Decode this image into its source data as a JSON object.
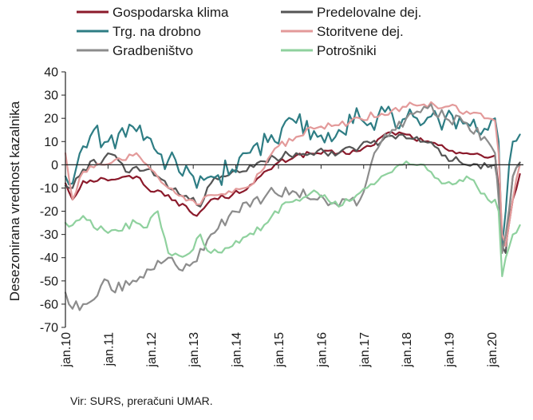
{
  "chart_data": {
    "type": "line",
    "xlabel": "",
    "ylabel": "Desezonirana vrednost kazalnika",
    "ylim": [
      -70,
      40
    ],
    "yticks": [
      "40",
      "30",
      "20",
      "10",
      "0",
      "-10",
      "-20",
      "-30",
      "-40",
      "-50",
      "-60",
      "-70"
    ],
    "x_start": "2010-01",
    "x_end": "2020-09",
    "x_ticks": [
      "jan.10",
      "jan.11",
      "jan.12",
      "jan.13",
      "jan.14",
      "jan.15",
      "jan.16",
      "jan.17",
      "jan.18",
      "jan.19",
      "jan.20"
    ],
    "legend_position": "top",
    "grid": false,
    "source": "Vir: SURS, preračuni UMAR.",
    "series": [
      {
        "name": "Gospodarska klima",
        "color": "#8b1a2b",
        "anchors": [
          [
            "2010-01",
            -8
          ],
          [
            "2010-03",
            -15
          ],
          [
            "2010-06",
            -7
          ],
          [
            "2010-12",
            -6
          ],
          [
            "2011-04",
            -6
          ],
          [
            "2011-09",
            -5
          ],
          [
            "2011-12",
            -10
          ],
          [
            "2012-06",
            -13
          ],
          [
            "2012-12",
            -20
          ],
          [
            "2013-02",
            -22
          ],
          [
            "2013-06",
            -15
          ],
          [
            "2013-12",
            -13
          ],
          [
            "2014-06",
            -8
          ],
          [
            "2014-12",
            0
          ],
          [
            "2015-06",
            4
          ],
          [
            "2015-12",
            5
          ],
          [
            "2016-06",
            5
          ],
          [
            "2016-12",
            6
          ],
          [
            "2017-03",
            8
          ],
          [
            "2017-06",
            12
          ],
          [
            "2017-09",
            14
          ],
          [
            "2018-01",
            13
          ],
          [
            "2018-06",
            10
          ],
          [
            "2018-12",
            7
          ],
          [
            "2019-06",
            5
          ],
          [
            "2019-12",
            3
          ],
          [
            "2020-02",
            4
          ],
          [
            "2020-03",
            -10
          ],
          [
            "2020-04",
            -32
          ],
          [
            "2020-05",
            -35
          ],
          [
            "2020-06",
            -25
          ],
          [
            "2020-07",
            -15
          ],
          [
            "2020-09",
            -4
          ]
        ],
        "noise": 1.2
      },
      {
        "name": "Predelovalne dej.",
        "color": "#555555",
        "anchors": [
          [
            "2010-01",
            -9
          ],
          [
            "2010-03",
            -10
          ],
          [
            "2010-06",
            -2
          ],
          [
            "2010-12",
            3
          ],
          [
            "2011-03",
            4
          ],
          [
            "2011-06",
            -3
          ],
          [
            "2011-12",
            -2
          ],
          [
            "2012-03",
            -5
          ],
          [
            "2012-06",
            -10
          ],
          [
            "2012-12",
            -15
          ],
          [
            "2013-03",
            -18
          ],
          [
            "2013-06",
            -8
          ],
          [
            "2013-12",
            -3
          ],
          [
            "2014-06",
            -1
          ],
          [
            "2014-12",
            3
          ],
          [
            "2015-06",
            5
          ],
          [
            "2015-12",
            6
          ],
          [
            "2016-06",
            5
          ],
          [
            "2016-12",
            8
          ],
          [
            "2017-06",
            10
          ],
          [
            "2017-12",
            13
          ],
          [
            "2018-06",
            10
          ],
          [
            "2018-12",
            4
          ],
          [
            "2019-06",
            0
          ],
          [
            "2019-12",
            -1
          ],
          [
            "2020-02",
            0
          ],
          [
            "2020-03",
            -10
          ],
          [
            "2020-04",
            -35
          ],
          [
            "2020-05",
            -38
          ],
          [
            "2020-06",
            -20
          ],
          [
            "2020-07",
            -5
          ],
          [
            "2020-09",
            1
          ]
        ],
        "noise": 1.8
      },
      {
        "name": "Trg. na drobno",
        "color": "#2e7d84",
        "anchors": [
          [
            "2010-01",
            -5
          ],
          [
            "2010-03",
            -8
          ],
          [
            "2010-06",
            8
          ],
          [
            "2010-09",
            15
          ],
          [
            "2011-01",
            10
          ],
          [
            "2011-06",
            12
          ],
          [
            "2011-12",
            12
          ],
          [
            "2012-03",
            5
          ],
          [
            "2012-06",
            2
          ],
          [
            "2012-09",
            -3
          ],
          [
            "2013-01",
            -5
          ],
          [
            "2013-06",
            -5
          ],
          [
            "2013-12",
            -2
          ],
          [
            "2014-03",
            5
          ],
          [
            "2014-06",
            8
          ],
          [
            "2014-12",
            10
          ],
          [
            "2015-06",
            18
          ],
          [
            "2015-12",
            12
          ],
          [
            "2016-06",
            15
          ],
          [
            "2016-12",
            20
          ],
          [
            "2017-03",
            18
          ],
          [
            "2017-06",
            25
          ],
          [
            "2017-09",
            22
          ],
          [
            "2018-01",
            20
          ],
          [
            "2018-06",
            18
          ],
          [
            "2018-12",
            20
          ],
          [
            "2019-06",
            18
          ],
          [
            "2019-12",
            15
          ],
          [
            "2020-02",
            20
          ],
          [
            "2020-03",
            10
          ],
          [
            "2020-04",
            -35
          ],
          [
            "2020-05",
            -20
          ],
          [
            "2020-07",
            10
          ],
          [
            "2020-09",
            13
          ]
        ],
        "noise": 5.5
      },
      {
        "name": "Storitvene dej.",
        "color": "#e39a9a",
        "anchors": [
          [
            "2010-01",
            5
          ],
          [
            "2010-03",
            -15
          ],
          [
            "2010-06",
            -3
          ],
          [
            "2010-12",
            0
          ],
          [
            "2011-06",
            2
          ],
          [
            "2011-09",
            5
          ],
          [
            "2011-12",
            0
          ],
          [
            "2012-06",
            -10
          ],
          [
            "2012-12",
            -15
          ],
          [
            "2013-03",
            -17
          ],
          [
            "2013-06",
            -13
          ],
          [
            "2013-12",
            -12
          ],
          [
            "2014-06",
            -8
          ],
          [
            "2014-12",
            7
          ],
          [
            "2015-06",
            12
          ],
          [
            "2015-12",
            16
          ],
          [
            "2016-06",
            17
          ],
          [
            "2016-12",
            20
          ],
          [
            "2017-06",
            22
          ],
          [
            "2017-12",
            25
          ],
          [
            "2018-06",
            26
          ],
          [
            "2018-12",
            25
          ],
          [
            "2019-06",
            23
          ],
          [
            "2019-12",
            20
          ],
          [
            "2020-02",
            19
          ],
          [
            "2020-03",
            5
          ],
          [
            "2020-04",
            -30
          ],
          [
            "2020-05",
            -35
          ],
          [
            "2020-06",
            -25
          ],
          [
            "2020-07",
            -15
          ],
          [
            "2020-09",
            0
          ]
        ],
        "noise": 1.6
      },
      {
        "name": "Gradbeništvo",
        "color": "#8c8c8c",
        "anchors": [
          [
            "2010-01",
            -55
          ],
          [
            "2010-03",
            -62
          ],
          [
            "2010-06",
            -60
          ],
          [
            "2010-09",
            -58
          ],
          [
            "2011-01",
            -50
          ],
          [
            "2011-03",
            -55
          ],
          [
            "2011-06",
            -50
          ],
          [
            "2011-12",
            -45
          ],
          [
            "2012-06",
            -40
          ],
          [
            "2012-09",
            -45
          ],
          [
            "2013-01",
            -42
          ],
          [
            "2013-06",
            -30
          ],
          [
            "2013-12",
            -20
          ],
          [
            "2014-06",
            -15
          ],
          [
            "2014-12",
            -12
          ],
          [
            "2015-06",
            -12
          ],
          [
            "2015-12",
            -15
          ],
          [
            "2016-06",
            -18
          ],
          [
            "2016-12",
            -15
          ],
          [
            "2017-03",
            0
          ],
          [
            "2017-06",
            10
          ],
          [
            "2017-09",
            15
          ],
          [
            "2018-01",
            20
          ],
          [
            "2018-06",
            25
          ],
          [
            "2018-12",
            20
          ],
          [
            "2019-06",
            18
          ],
          [
            "2019-12",
            10
          ],
          [
            "2020-02",
            5
          ],
          [
            "2020-03",
            -15
          ],
          [
            "2020-04",
            -38
          ],
          [
            "2020-05",
            -30
          ],
          [
            "2020-07",
            -5
          ],
          [
            "2020-09",
            0
          ]
        ],
        "noise": 2.8
      },
      {
        "name": "Potrošniki",
        "color": "#8fd19e",
        "anchors": [
          [
            "2010-01",
            -25
          ],
          [
            "2010-03",
            -26
          ],
          [
            "2010-06",
            -22
          ],
          [
            "2010-09",
            -27
          ],
          [
            "2011-03",
            -28
          ],
          [
            "2011-09",
            -25
          ],
          [
            "2011-12",
            -27
          ],
          [
            "2012-03",
            -20
          ],
          [
            "2012-06",
            -38
          ],
          [
            "2012-12",
            -38
          ],
          [
            "2013-03",
            -30
          ],
          [
            "2013-06",
            -38
          ],
          [
            "2013-12",
            -35
          ],
          [
            "2014-06",
            -30
          ],
          [
            "2014-12",
            -20
          ],
          [
            "2015-06",
            -15
          ],
          [
            "2015-12",
            -12
          ],
          [
            "2016-06",
            -18
          ],
          [
            "2016-12",
            -12
          ],
          [
            "2017-06",
            -5
          ],
          [
            "2017-12",
            0
          ],
          [
            "2018-06",
            0
          ],
          [
            "2018-12",
            -8
          ],
          [
            "2019-06",
            -5
          ],
          [
            "2019-12",
            -15
          ],
          [
            "2020-02",
            -15
          ],
          [
            "2020-03",
            -20
          ],
          [
            "2020-04",
            -48
          ],
          [
            "2020-05",
            -40
          ],
          [
            "2020-07",
            -30
          ],
          [
            "2020-09",
            -26
          ]
        ],
        "noise": 1.8
      }
    ]
  }
}
